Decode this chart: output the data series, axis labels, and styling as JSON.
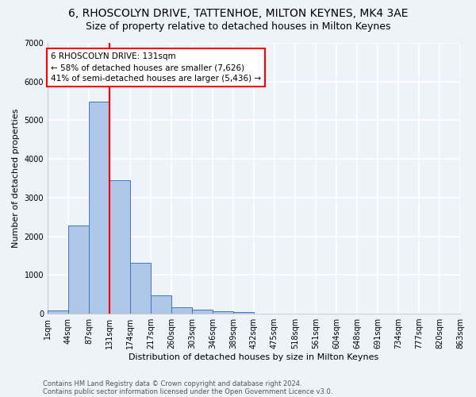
{
  "title": "6, RHOSCOLYN DRIVE, TATTENHOE, MILTON KEYNES, MK4 3AE",
  "subtitle": "Size of property relative to detached houses in Milton Keynes",
  "xlabel": "Distribution of detached houses by size in Milton Keynes",
  "ylabel": "Number of detached properties",
  "bar_values": [
    80,
    2280,
    5480,
    3440,
    1310,
    470,
    165,
    95,
    65,
    50,
    0,
    0,
    0,
    0,
    0,
    0,
    0,
    0,
    0,
    0
  ],
  "bar_labels": [
    "1sqm",
    "44sqm",
    "87sqm",
    "131sqm",
    "174sqm",
    "217sqm",
    "260sqm",
    "303sqm",
    "346sqm",
    "389sqm",
    "432sqm",
    "475sqm",
    "518sqm",
    "561sqm",
    "604sqm",
    "648sqm",
    "691sqm",
    "734sqm",
    "777sqm",
    "820sqm",
    "863sqm"
  ],
  "bar_color": "#aec6e8",
  "bar_edgecolor": "#4472c4",
  "property_line_x": 3,
  "annotation_text": "6 RHOSCOLYN DRIVE: 131sqm\n← 58% of detached houses are smaller (7,626)\n41% of semi-detached houses are larger (5,436) →",
  "ylim": [
    0,
    7000
  ],
  "yticks": [
    0,
    1000,
    2000,
    3000,
    4000,
    5000,
    6000,
    7000
  ],
  "footer1": "Contains HM Land Registry data © Crown copyright and database right 2024.",
  "footer2": "Contains public sector information licensed under the Open Government Licence v3.0.",
  "bg_color": "#eef2f9",
  "grid_color": "#ffffff",
  "title_fontsize": 10,
  "subtitle_fontsize": 9,
  "axis_label_fontsize": 8,
  "tick_fontsize": 7,
  "annot_fontsize": 7.5,
  "footer_fontsize": 6
}
